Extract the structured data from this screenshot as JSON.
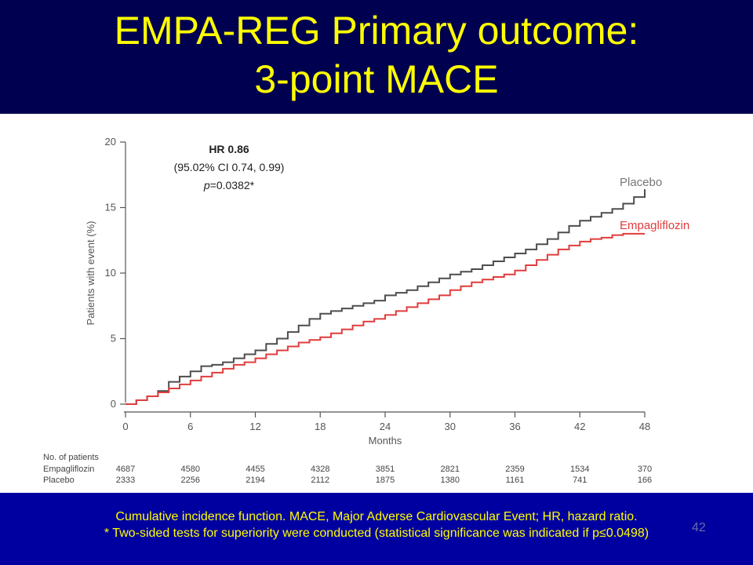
{
  "slide": {
    "title_line1": "EMPA-REG Primary outcome:",
    "title_line2": "3-point MACE",
    "footnote_line1": "Cumulative incidence function. MACE, Major Adverse Cardiovascular Event; HR, hazard ratio.",
    "footnote_line2": "* Two-sided tests for superiority were conducted (statistical significance was indicated if p≤0.0498)",
    "slide_number": "42"
  },
  "colors": {
    "title_bg": "#000050",
    "title_text": "#ffff00",
    "footer_bg": "#0000a0",
    "placebo": "#4d4d4d",
    "empagliflozin": "#e03c3c"
  },
  "annotation": {
    "hr": "HR 0.86",
    "ci": "(95.02% CI 0.74, 0.99)",
    "p_prefix": "p",
    "p_value": "=0.0382*"
  },
  "chart_data": {
    "type": "line",
    "xlabel": "Months",
    "ylabel": "Patients with event (%)",
    "xlim": [
      0,
      48
    ],
    "ylim": [
      0,
      20
    ],
    "xticks": [
      0,
      6,
      12,
      18,
      24,
      30,
      36,
      42,
      48
    ],
    "yticks": [
      0,
      5,
      10,
      15,
      20
    ],
    "grid": false,
    "series": [
      {
        "name": "Placebo",
        "color": "#4d4d4d",
        "x": [
          0,
          1,
          2,
          3,
          4,
          5,
          6,
          7,
          8,
          9,
          10,
          11,
          12,
          13,
          14,
          15,
          16,
          17,
          18,
          19,
          20,
          21,
          22,
          23,
          24,
          25,
          26,
          27,
          28,
          29,
          30,
          31,
          32,
          33,
          34,
          35,
          36,
          37,
          38,
          39,
          40,
          41,
          42,
          43,
          44,
          45,
          46,
          47,
          48
        ],
        "values": [
          0,
          0.3,
          0.6,
          1.0,
          1.7,
          2.1,
          2.5,
          2.9,
          3.0,
          3.2,
          3.5,
          3.8,
          4.1,
          4.6,
          5.0,
          5.5,
          6.0,
          6.5,
          6.9,
          7.1,
          7.3,
          7.5,
          7.7,
          7.9,
          8.3,
          8.5,
          8.7,
          9.0,
          9.3,
          9.6,
          9.9,
          10.1,
          10.3,
          10.6,
          10.9,
          11.2,
          11.5,
          11.8,
          12.2,
          12.6,
          13.1,
          13.6,
          14.0,
          14.3,
          14.6,
          14.9,
          15.3,
          15.8,
          16.4
        ]
      },
      {
        "name": "Empagliflozin",
        "color": "#e03c3c",
        "x": [
          0,
          1,
          2,
          3,
          4,
          5,
          6,
          7,
          8,
          9,
          10,
          11,
          12,
          13,
          14,
          15,
          16,
          17,
          18,
          19,
          20,
          21,
          22,
          23,
          24,
          25,
          26,
          27,
          28,
          29,
          30,
          31,
          32,
          33,
          34,
          35,
          36,
          37,
          38,
          39,
          40,
          41,
          42,
          43,
          44,
          45,
          46,
          47,
          48
        ],
        "values": [
          0,
          0.3,
          0.6,
          0.9,
          1.2,
          1.5,
          1.8,
          2.1,
          2.4,
          2.7,
          3.0,
          3.2,
          3.5,
          3.8,
          4.1,
          4.4,
          4.7,
          4.9,
          5.1,
          5.4,
          5.7,
          6.0,
          6.3,
          6.5,
          6.8,
          7.1,
          7.4,
          7.7,
          8.0,
          8.3,
          8.7,
          9.0,
          9.3,
          9.5,
          9.7,
          9.9,
          10.2,
          10.6,
          11.0,
          11.4,
          11.8,
          12.1,
          12.4,
          12.6,
          12.7,
          12.9,
          13.0,
          13.0,
          13.0
        ]
      }
    ]
  },
  "risk_table": {
    "header": "No. of patients",
    "rows": [
      {
        "label": "Empagliflozin",
        "counts": [
          "4687",
          "4580",
          "4455",
          "4328",
          "3851",
          "2821",
          "2359",
          "1534",
          "370"
        ]
      },
      {
        "label": "Placebo",
        "counts": [
          "2333",
          "2256",
          "2194",
          "2112",
          "1875",
          "1380",
          "1161",
          "741",
          "166"
        ]
      }
    ]
  }
}
